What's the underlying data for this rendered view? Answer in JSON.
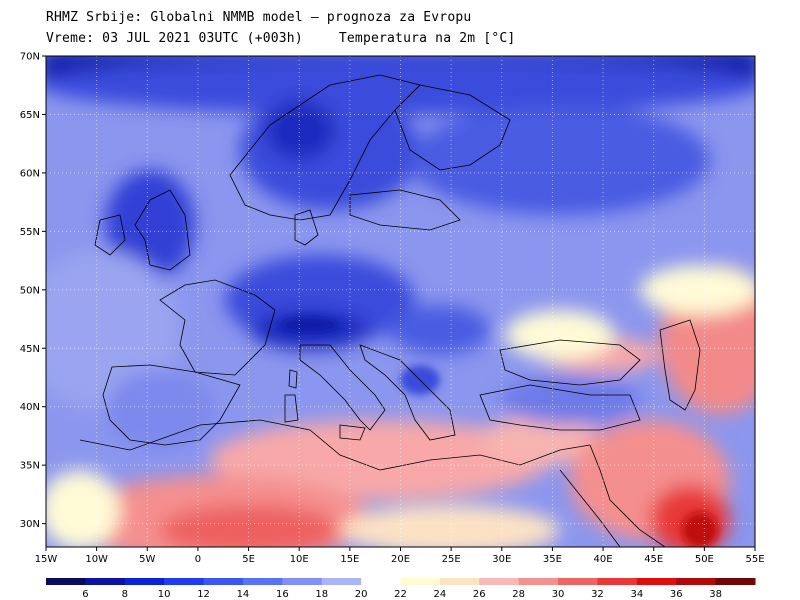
{
  "header": {
    "title": "RHMZ Srbije: Globalni NMMB model — prognoza za Evropu",
    "time": "Vreme: 03 JUL 2021 03UTC (+003h)",
    "variable": "Temperatura na 2m [°C]"
  },
  "map": {
    "lat_labels": [
      "70N",
      "65N",
      "60N",
      "55N",
      "50N",
      "45N",
      "40N",
      "35N",
      "30N"
    ],
    "lon_labels": [
      "15W",
      "10W",
      "5W",
      "0",
      "5E",
      "10E",
      "15E",
      "20E",
      "25E",
      "30E",
      "35E",
      "40E",
      "45E",
      "50E",
      "55E"
    ],
    "lat_range": [
      28,
      70
    ],
    "lon_range": [
      -15,
      55
    ],
    "grid": true,
    "colors": {
      "deep_cold": "#0a1aa8",
      "cold": "#3a4bdc",
      "cool": "#8b96ee",
      "neutral": "#fffbd6",
      "warm": "#f8a8a8",
      "hot": "#ee4a4a"
    }
  },
  "legend": {
    "labels": [
      "6",
      "8",
      "10",
      "12",
      "14",
      "16",
      "18",
      "20",
      "22",
      "24",
      "26",
      "28",
      "30",
      "32",
      "34",
      "36",
      "38"
    ],
    "colors": [
      "#0a0a5e",
      "#0a14a0",
      "#0a23d8",
      "#1f3df0",
      "#3a57f4",
      "#5a72f6",
      "#8090f4",
      "#aab4f6",
      "#ffffff",
      "#fffbd2",
      "#fde2c4",
      "#f7b9b4",
      "#f39090",
      "#ee6464",
      "#e83838",
      "#e01010",
      "#b00a0a",
      "#700606"
    ]
  }
}
